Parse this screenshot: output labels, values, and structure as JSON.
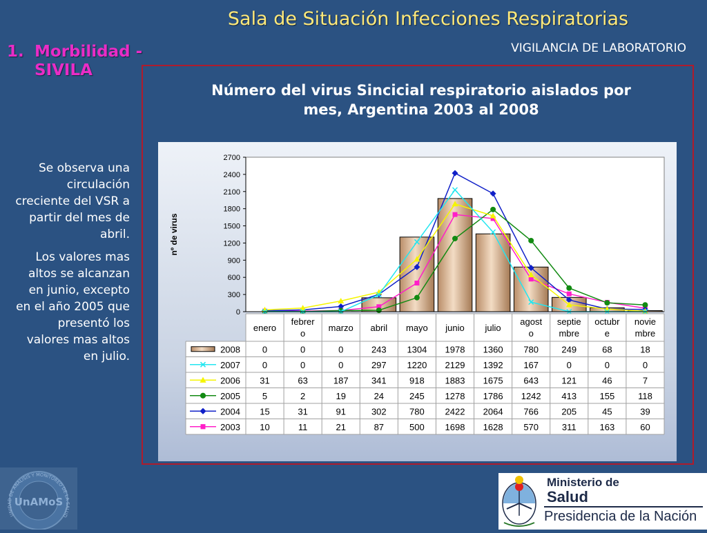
{
  "header": {
    "title": "Sala de Situación Infecciones Respiratorias",
    "section_number": "1.",
    "section_line1": "Morbilidad -",
    "section_line2": "SIVILA",
    "subtitle": "VIGILANCIA DE LABORATORIO"
  },
  "sidebar": {
    "paragraph1": "Se observa una circulación creciente del VSR a partir del mes de abril.",
    "paragraph2": "Los valores mas altos se alcanzan en junio, excepto en el año 2005 que presentó los valores mas altos en julio."
  },
  "colors": {
    "background": "#2b5282",
    "title": "#ffe97a",
    "heading": "#e92cc6",
    "frame": "#b01b2c",
    "bar": "#d9b79a"
  },
  "chart_data": {
    "type": "bar",
    "title_line1": "Número del virus Sincicial respiratorio aislados por",
    "title_line2": "mes, Argentina 2003 al 2008",
    "ylabel": "nº de virus",
    "xlabel": "",
    "ylim": [
      0,
      2700
    ],
    "yticks": [
      0,
      300,
      600,
      900,
      1200,
      1500,
      1800,
      2100,
      2400,
      2700
    ],
    "categories": [
      "enero",
      "febrero",
      "marzo",
      "abril",
      "mayo",
      "junio",
      "julio",
      "agosto",
      "septiembre",
      "octubre",
      "noviembre"
    ],
    "category_labels": [
      [
        "enero"
      ],
      [
        "febrer",
        "o"
      ],
      [
        "marzo"
      ],
      [
        "abril"
      ],
      [
        "mayo"
      ],
      [
        "junio"
      ],
      [
        "julio"
      ],
      [
        "agost",
        "o"
      ],
      [
        "septie",
        "mbre"
      ],
      [
        "octubr",
        "e"
      ],
      [
        "novie",
        "mbre"
      ]
    ],
    "grid": false,
    "legend": "data-table",
    "series": [
      {
        "name": "2008",
        "type": "bar",
        "color": "#d9b79a",
        "marker": "bar",
        "values": [
          0,
          0,
          0,
          243,
          1304,
          1978,
          1360,
          780,
          249,
          68,
          18
        ]
      },
      {
        "name": "2007",
        "type": "line",
        "color": "#22e6f0",
        "marker": "x",
        "values": [
          0,
          0,
          0,
          297,
          1220,
          2129,
          1392,
          167,
          0,
          0,
          0
        ]
      },
      {
        "name": "2006",
        "type": "line",
        "color": "#f5f500",
        "marker": "triangle",
        "values": [
          31,
          63,
          187,
          341,
          918,
          1883,
          1675,
          643,
          121,
          46,
          7
        ]
      },
      {
        "name": "2005",
        "type": "line",
        "color": "#128a12",
        "marker": "circle",
        "values": [
          5,
          2,
          19,
          24,
          245,
          1278,
          1786,
          1242,
          413,
          155,
          118
        ]
      },
      {
        "name": "2004",
        "type": "line",
        "color": "#1020c8",
        "marker": "diamond",
        "values": [
          15,
          31,
          91,
          302,
          780,
          2422,
          2064,
          766,
          205,
          45,
          39
        ]
      },
      {
        "name": "2003",
        "type": "line",
        "color": "#ff1ec8",
        "marker": "square",
        "values": [
          10,
          11,
          21,
          87,
          500,
          1698,
          1628,
          570,
          311,
          163,
          60
        ]
      }
    ]
  },
  "logo": {
    "ministerio": "Ministerio de",
    "salud": "Salud",
    "presidencia": "Presidencia de la Nación",
    "seal_text": "UnAMoS",
    "seal_ring_text": "UNIDAD DE ANALISIS Y MONITOREO DE LA SALUD"
  }
}
